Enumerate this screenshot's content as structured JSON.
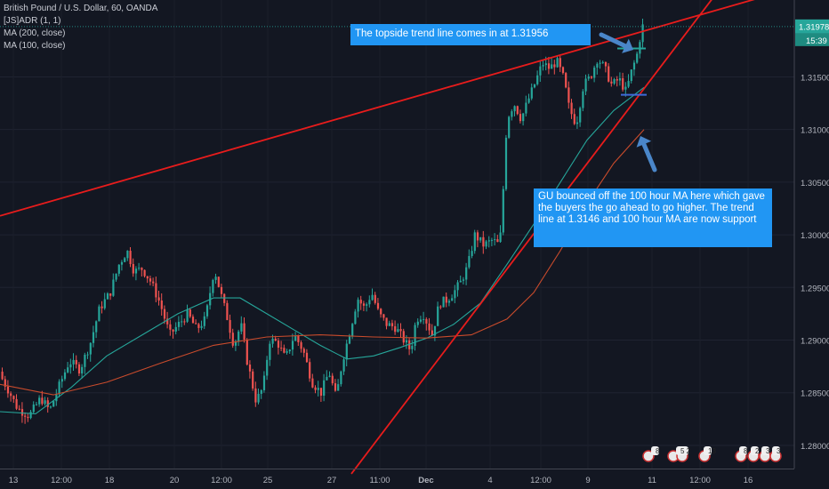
{
  "legend": {
    "title": "British Pound / U.S. Dollar, 60, OANDA",
    "line2": "[JS]ADR (1, 1)",
    "line3": "MA (200, close)",
    "line4": "MA (100, close)"
  },
  "annotations": {
    "top": "The topside trend line comes in at 1.31956",
    "bottom": "GU bounced off the 100 hour  MA here which gave the buyers the go ahead to go higher. The trend line at 1.3146 and 100 hour MA are now support"
  },
  "price_tag": {
    "price": "1.31978",
    "timer": "15:39"
  },
  "event_badges": [
    "8",
    "5 2",
    "13",
    "8",
    "2",
    "3",
    "3"
  ],
  "colors": {
    "background": "#131722",
    "up": "#26a69a",
    "down": "#ef5350",
    "trendline": "#e81c1c",
    "ma100": "#26a69a",
    "ma200": "#c94b2c",
    "annotation": "#2196f3"
  },
  "chart_data": {
    "type": "candlestick",
    "y_axis_ticks": [
      "1.31500",
      "1.31000",
      "1.30500",
      "1.30000",
      "1.29500",
      "1.29000",
      "1.28500",
      "1.28000"
    ],
    "x_axis_ticks": [
      "13",
      "12:00",
      "18",
      "20",
      "12:00",
      "25",
      "27",
      "11:00",
      "Dec",
      "4",
      "12:00",
      "9",
      "11",
      "12:00",
      "16"
    ],
    "ylim": [
      1.2778,
      1.3223
    ],
    "last_price": 1.31978,
    "bounce_level": 1.3133,
    "prior_high_level": 1.3177,
    "price_path": [
      [
        0,
        1.287
      ],
      [
        10,
        1.2855
      ],
      [
        22,
        1.2835
      ],
      [
        35,
        1.2828
      ],
      [
        48,
        1.2845
      ],
      [
        58,
        1.2833
      ],
      [
        68,
        1.2855
      ],
      [
        80,
        1.288
      ],
      [
        92,
        1.2872
      ],
      [
        104,
        1.2898
      ],
      [
        114,
        1.293
      ],
      [
        126,
        1.2945
      ],
      [
        136,
        1.2972
      ],
      [
        145,
        1.2985
      ],
      [
        153,
        1.2965
      ],
      [
        162,
        1.2968
      ],
      [
        172,
        1.2955
      ],
      [
        182,
        1.2935
      ],
      [
        193,
        1.2905
      ],
      [
        203,
        1.2915
      ],
      [
        213,
        1.2925
      ],
      [
        223,
        1.291
      ],
      [
        233,
        1.292
      ],
      [
        243,
        1.2968
      ],
      [
        250,
        1.2945
      ],
      [
        258,
        1.292
      ],
      [
        265,
        1.2895
      ],
      [
        273,
        1.2915
      ],
      [
        280,
        1.288
      ],
      [
        290,
        1.2842
      ],
      [
        298,
        1.2855
      ],
      [
        305,
        1.29
      ],
      [
        314,
        1.2898
      ],
      [
        323,
        1.2882
      ],
      [
        333,
        1.2905
      ],
      [
        343,
        1.289
      ],
      [
        353,
        1.286
      ],
      [
        363,
        1.285
      ],
      [
        372,
        1.287
      ],
      [
        380,
        1.2845
      ],
      [
        387,
        1.288
      ],
      [
        396,
        1.291
      ],
      [
        404,
        1.294
      ],
      [
        412,
        1.293
      ],
      [
        420,
        1.2945
      ],
      [
        428,
        1.2925
      ],
      [
        437,
        1.2915
      ],
      [
        447,
        1.2912
      ],
      [
        456,
        1.29
      ],
      [
        464,
        1.289
      ],
      [
        470,
        1.292
      ],
      [
        478,
        1.2925
      ],
      [
        488,
        1.2905
      ],
      [
        496,
        1.2935
      ],
      [
        504,
        1.2938
      ],
      [
        512,
        1.2945
      ],
      [
        520,
        1.2955
      ],
      [
        528,
        1.297
      ],
      [
        536,
        1.3
      ],
      [
        546,
        1.299
      ],
      [
        556,
        1.2995
      ],
      [
        564,
        1.299
      ],
      [
        568,
        1.3045
      ],
      [
        572,
        1.311
      ],
      [
        580,
        1.3125
      ],
      [
        588,
        1.311
      ],
      [
        596,
        1.3128
      ],
      [
        604,
        1.3145
      ],
      [
        612,
        1.3163
      ],
      [
        620,
        1.3158
      ],
      [
        628,
        1.3165
      ],
      [
        636,
        1.3148
      ],
      [
        642,
        1.312
      ],
      [
        650,
        1.3105
      ],
      [
        658,
        1.3142
      ],
      [
        666,
        1.315
      ],
      [
        674,
        1.3168
      ],
      [
        682,
        1.3158
      ],
      [
        690,
        1.3142
      ],
      [
        698,
        1.3148
      ],
      [
        706,
        1.3136
      ],
      [
        712,
        1.3155
      ],
      [
        718,
        1.317
      ],
      [
        724,
        1.3198
      ]
    ],
    "ma100_path": [
      [
        0,
        1.2832
      ],
      [
        40,
        1.283
      ],
      [
        80,
        1.2855
      ],
      [
        120,
        1.2885
      ],
      [
        160,
        1.2905
      ],
      [
        200,
        1.2925
      ],
      [
        240,
        1.294
      ],
      [
        270,
        1.294
      ],
      [
        300,
        1.2925
      ],
      [
        330,
        1.291
      ],
      [
        360,
        1.2895
      ],
      [
        390,
        1.2882
      ],
      [
        420,
        1.2885
      ],
      [
        450,
        1.2893
      ],
      [
        480,
        1.2902
      ],
      [
        510,
        1.2915
      ],
      [
        540,
        1.2935
      ],
      [
        570,
        1.2972
      ],
      [
        600,
        1.301
      ],
      [
        630,
        1.305
      ],
      [
        660,
        1.309
      ],
      [
        690,
        1.3118
      ],
      [
        724,
        1.314
      ]
    ],
    "ma200_path": [
      [
        0,
        1.2858
      ],
      [
        60,
        1.2848
      ],
      [
        120,
        1.286
      ],
      [
        180,
        1.2878
      ],
      [
        240,
        1.2895
      ],
      [
        300,
        1.2903
      ],
      [
        360,
        1.2905
      ],
      [
        420,
        1.2903
      ],
      [
        480,
        1.2902
      ],
      [
        530,
        1.2905
      ],
      [
        570,
        1.292
      ],
      [
        600,
        1.2945
      ],
      [
        630,
        1.2985
      ],
      [
        660,
        1.303
      ],
      [
        690,
        1.3068
      ],
      [
        724,
        1.31
      ]
    ],
    "trendlines": [
      {
        "name": "topside",
        "from": [
          0,
          1.3018
        ],
        "to": [
          895,
          1.3235
        ]
      },
      {
        "name": "support",
        "from": [
          395,
          1.2773
        ],
        "to": [
          815,
          1.324
        ]
      }
    ]
  }
}
